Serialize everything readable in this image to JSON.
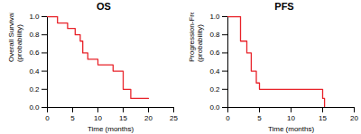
{
  "chart_data": [
    {
      "type": "step",
      "title": "OS",
      "xlabel": "Time (months)",
      "ylabel": "Overall Survival\n(probability)",
      "x": [
        0,
        2,
        4,
        5.5,
        6.5,
        7,
        8,
        10,
        13,
        15,
        16.5,
        20
      ],
      "values": [
        1,
        0.93,
        0.87,
        0.8,
        0.73,
        0.6,
        0.53,
        0.47,
        0.4,
        0.2,
        0.1,
        0.1
      ],
      "color": "#e8232a",
      "xlim": [
        0,
        25
      ],
      "xticks": [
        0,
        5,
        10,
        15,
        20,
        25
      ],
      "ylim": [
        0,
        1
      ],
      "yticks": [
        {
          "value": 0,
          "label": "0.0"
        },
        0.2,
        0.4,
        0.6,
        0.8,
        {
          "value": 1,
          "label": "1.0"
        }
      ]
    },
    {
      "type": "step",
      "title": "PFS",
      "xlabel": "Time (months)",
      "ylabel": "Progression-Free Survival\n(probability)",
      "x": [
        0,
        2,
        3,
        3.7,
        4.5,
        5,
        15,
        15.3
      ],
      "values": [
        1,
        0.73,
        0.6,
        0.4,
        0.27,
        0.2,
        0.1,
        0
      ],
      "color": "#e8232a",
      "xlim": [
        0,
        20
      ],
      "xticks": [
        0,
        5,
        10,
        15,
        20
      ],
      "ylim": [
        0,
        1
      ],
      "yticks": [
        {
          "value": 0,
          "label": "0.0"
        },
        0.2,
        0.4,
        0.6,
        0.8,
        {
          "value": 1,
          "label": "1.0"
        }
      ]
    }
  ]
}
